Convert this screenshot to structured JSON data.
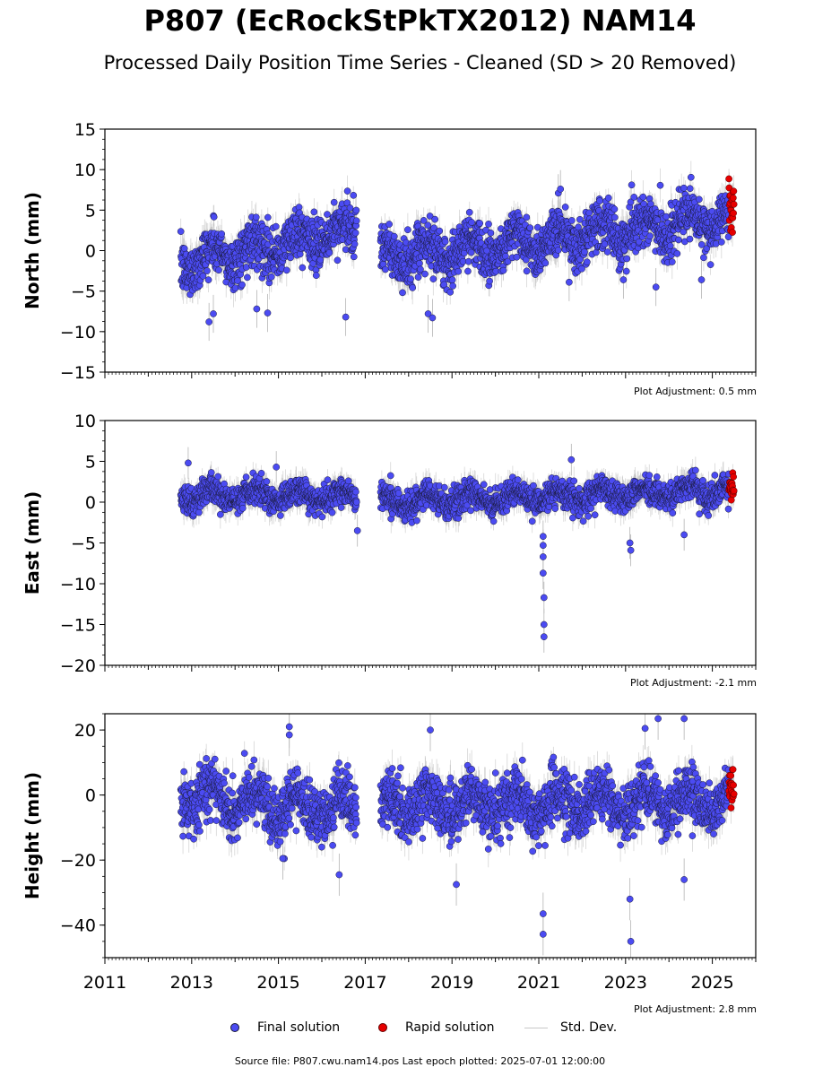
{
  "chart_data": {
    "type": "scatter",
    "title": "P807 (EcRockStPkTX2012) NAM14",
    "subtitle": "Processed Daily Position Time Series - Cleaned (SD > 20 Removed)",
    "xlim": [
      2011,
      2026
    ],
    "x_ticks": [
      2011,
      2013,
      2015,
      2017,
      2019,
      2021,
      2023,
      2025
    ],
    "x_tick_labels": [
      "2011",
      "2013",
      "2015",
      "2017",
      "2019",
      "2021",
      "2023",
      "2025"
    ],
    "data_span": {
      "start": 2012.75,
      "gap_start": 2016.8,
      "gap_end": 2017.35,
      "end": 2025.5,
      "rapid_start": 2025.38
    },
    "panels": [
      {
        "name": "north",
        "ylabel": "North (mm)",
        "ylim": [
          -15,
          15
        ],
        "y_ticks": [
          15,
          10,
          5,
          0,
          -5,
          -10,
          -15
        ],
        "y_tick_labels": [
          "15",
          "10",
          "5",
          "0",
          "−5",
          "−10",
          "−15"
        ],
        "adjustment": "Plot Adjustment: 0.5 mm",
        "trend": [
          [
            2012.75,
            -1.5
          ],
          [
            2016.8,
            2.5
          ],
          [
            2017.35,
            -1.0
          ],
          [
            2025.5,
            4.0
          ]
        ],
        "scatter": 2.2,
        "sd": 1.8,
        "outliers": [
          [
            2013.4,
            -8.8
          ],
          [
            2013.5,
            -7.8
          ],
          [
            2014.5,
            -7.2
          ],
          [
            2014.75,
            -7.7
          ],
          [
            2016.55,
            -8.2
          ],
          [
            2018.45,
            -7.8
          ],
          [
            2018.55,
            -8.3
          ],
          [
            2021.45,
            7.1
          ],
          [
            2021.5,
            7.6
          ],
          [
            2023.7,
            -4.5
          ],
          [
            2024.75,
            -3.6
          ],
          [
            2021.7,
            -3.9
          ],
          [
            2022.95,
            -3.6
          ]
        ]
      },
      {
        "name": "east",
        "ylabel": "East (mm)",
        "ylim": [
          -20,
          10
        ],
        "y_ticks": [
          10,
          5,
          0,
          -5,
          -10,
          -15,
          -20
        ],
        "y_tick_labels": [
          "10",
          "5",
          "0",
          "−5",
          "−10",
          "−15",
          "−20"
        ],
        "adjustment": "Plot Adjustment: -2.1 mm",
        "trend": [
          [
            2012.75,
            0.8
          ],
          [
            2016.8,
            0.8
          ],
          [
            2017.35,
            0.0
          ],
          [
            2025.5,
            1.5
          ]
        ],
        "scatter": 1.2,
        "sd": 1.5,
        "outliers": [
          [
            2012.92,
            4.8
          ],
          [
            2014.95,
            4.3
          ],
          [
            2021.1,
            -4.2
          ],
          [
            2021.1,
            -5.3
          ],
          [
            2021.1,
            -6.7
          ],
          [
            2021.1,
            -8.7
          ],
          [
            2021.12,
            -11.7
          ],
          [
            2021.12,
            -15.0
          ],
          [
            2021.12,
            -16.5
          ],
          [
            2023.1,
            -5.0
          ],
          [
            2023.12,
            -5.9
          ],
          [
            2024.35,
            -4.0
          ],
          [
            2021.75,
            5.2
          ],
          [
            2016.82,
            -3.5
          ]
        ]
      },
      {
        "name": "height",
        "ylabel": "Height (mm)",
        "ylim": [
          -50,
          25
        ],
        "y_ticks": [
          20,
          0,
          -20,
          -40
        ],
        "y_tick_labels": [
          "20",
          "0",
          "−20",
          "−40"
        ],
        "adjustment": "Plot Adjustment: 2.8 mm",
        "trend": [
          [
            2012.75,
            0.0
          ],
          [
            2016.8,
            -5.0
          ],
          [
            2017.35,
            -3.0
          ],
          [
            2025.5,
            -2.0
          ]
        ],
        "scatter": 6.0,
        "sd": 5.0,
        "outliers": [
          [
            2015.25,
            21.0
          ],
          [
            2015.25,
            18.5
          ],
          [
            2018.5,
            20.0
          ],
          [
            2023.75,
            23.5
          ],
          [
            2024.35,
            23.5
          ],
          [
            2023.45,
            20.5
          ],
          [
            2021.1,
            -36.5
          ],
          [
            2021.1,
            -42.8
          ],
          [
            2023.1,
            -32.0
          ],
          [
            2023.12,
            -45.0
          ],
          [
            2024.35,
            -26.0
          ],
          [
            2019.1,
            -27.5
          ],
          [
            2016.4,
            -24.5
          ],
          [
            2015.1,
            -19.5
          ]
        ]
      }
    ],
    "legend": {
      "placement": "bottom",
      "items": [
        {
          "label": "Final solution",
          "color": "#4b4bf2"
        },
        {
          "label": "Rapid solution",
          "color": "#e60000"
        },
        {
          "label": "Std. Dev.",
          "color": "#c8c8c8"
        }
      ]
    },
    "colors": {
      "final": "#4b4bf2",
      "rapid": "#e60000",
      "sd": "#b4b4b4",
      "edge": "#1a1a3a"
    }
  },
  "footer": {
    "source": "Source file: P807.cwu.nam14.pos  Last epoch plotted: 2025-07-01 12:00:00"
  }
}
